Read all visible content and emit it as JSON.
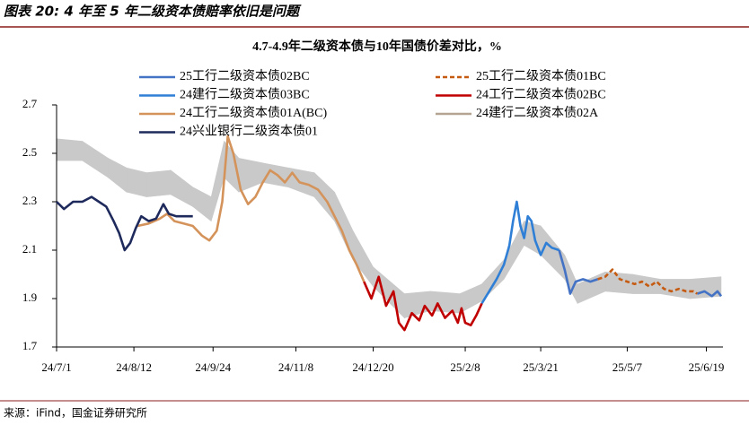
{
  "header": {
    "title": "图表 20: 4 年至 5 年二级资本债赔率依旧是问题"
  },
  "chart_data": {
    "type": "line",
    "title": "4.7-4.9年二级资本债与10年国债价差对比，%",
    "xlim": [
      "2024-07-01",
      "2025-06-28"
    ],
    "xticks": [
      {
        "value": "2024-07-01",
        "label": "24/7/1"
      },
      {
        "value": "2024-08-12",
        "label": "24/8/12"
      },
      {
        "value": "2024-09-24",
        "label": "24/9/24"
      },
      {
        "value": "2024-11-08",
        "label": "24/11/8"
      },
      {
        "value": "2024-12-20",
        "label": "24/12/20"
      },
      {
        "value": "2025-02-08",
        "label": "25/2/8"
      },
      {
        "value": "2025-03-21",
        "label": "25/3/21"
      },
      {
        "value": "2025-05-07",
        "label": "25/5/7"
      },
      {
        "value": "2025-06-19",
        "label": "25/6/19"
      }
    ],
    "ylim": [
      1.7,
      2.7
    ],
    "yticks": [
      1.7,
      1.9,
      2.1,
      2.3,
      2.5,
      2.7
    ],
    "grid": false,
    "band": {
      "color": "#c9c9c9",
      "x": [
        "2024-07-01",
        "2024-07-15",
        "2024-07-29",
        "2024-08-08",
        "2024-08-19",
        "2024-09-01",
        "2024-09-13",
        "2024-09-23",
        "2024-09-30",
        "2024-10-08",
        "2024-10-21",
        "2024-11-04",
        "2024-11-18",
        "2024-11-29",
        "2024-12-09",
        "2024-12-20",
        "2025-01-06",
        "2025-01-20",
        "2025-02-05",
        "2025-02-17",
        "2025-03-01",
        "2025-03-12",
        "2025-03-21",
        "2025-04-03",
        "2025-04-10",
        "2025-04-25",
        "2025-05-10",
        "2025-05-25",
        "2025-06-10",
        "2025-06-27"
      ],
      "low": [
        2.47,
        2.47,
        2.4,
        2.34,
        2.32,
        2.33,
        2.28,
        2.22,
        2.4,
        2.34,
        2.38,
        2.36,
        2.32,
        2.22,
        2.06,
        1.95,
        1.82,
        1.85,
        1.84,
        1.89,
        1.98,
        2.12,
        2.08,
        1.98,
        1.88,
        1.93,
        1.92,
        1.92,
        1.9,
        1.91
      ],
      "high": [
        2.56,
        2.55,
        2.48,
        2.44,
        2.42,
        2.43,
        2.36,
        2.32,
        2.55,
        2.48,
        2.46,
        2.44,
        2.42,
        2.34,
        2.18,
        2.03,
        1.92,
        1.93,
        1.92,
        1.96,
        2.06,
        2.22,
        2.2,
        2.08,
        1.96,
        2.01,
        2.0,
        1.98,
        1.98,
        1.99
      ]
    },
    "series": [
      {
        "name": "25工行二级资本债02BC",
        "color": "#4472c4",
        "x": [
          "2025-03-31",
          "2025-04-03",
          "2025-04-06",
          "2025-04-09",
          "2025-04-13",
          "2025-04-17",
          "2025-04-21",
          "2025-05-01",
          "2025-06-14",
          "2025-06-18",
          "2025-06-22",
          "2025-06-25",
          "2025-06-27"
        ],
        "values": [
          2.1,
          2.02,
          1.92,
          1.97,
          1.98,
          1.97,
          1.98,
          null,
          1.92,
          1.93,
          1.91,
          1.93,
          1.91
        ]
      },
      {
        "name": "25工行二级资本债01BC",
        "color": "#c55a11",
        "dash": true,
        "x": [
          "2025-04-21",
          "2025-04-25",
          "2025-04-29",
          "2025-05-03",
          "2025-05-07",
          "2025-05-11",
          "2025-05-15",
          "2025-05-19",
          "2025-05-23",
          "2025-05-27",
          "2025-05-31",
          "2025-06-04",
          "2025-06-08",
          "2025-06-12",
          "2025-06-14"
        ],
        "values": [
          1.98,
          1.99,
          2.02,
          1.98,
          1.97,
          1.96,
          1.97,
          1.95,
          1.97,
          1.94,
          1.93,
          1.94,
          1.93,
          1.93,
          1.92
        ]
      },
      {
        "name": "24建行二级资本债03BC",
        "color": "#2f7fd6",
        "x": [
          "2025-02-17",
          "2025-02-21",
          "2025-02-25",
          "2025-03-01",
          "2025-03-04",
          "2025-03-06",
          "2025-03-08",
          "2025-03-10",
          "2025-03-12",
          "2025-03-14",
          "2025-03-16",
          "2025-03-18",
          "2025-03-21",
          "2025-03-24",
          "2025-03-27",
          "2025-03-31"
        ],
        "values": [
          1.88,
          1.93,
          1.98,
          2.04,
          2.12,
          2.22,
          2.3,
          2.2,
          2.15,
          2.24,
          2.22,
          2.14,
          2.08,
          2.13,
          2.11,
          2.1
        ]
      },
      {
        "name": "24工行二级资本债02BC",
        "color": "#c00000",
        "x": [
          "2024-12-15",
          "2024-12-19",
          "2024-12-23",
          "2024-12-27",
          "2024-12-31",
          "2025-01-03",
          "2025-01-06",
          "2025-01-10",
          "2025-01-14",
          "2025-01-17",
          "2025-01-21",
          "2025-01-24",
          "2025-01-28",
          "2025-02-01",
          "2025-02-04",
          "2025-02-06",
          "2025-02-08",
          "2025-02-11",
          "2025-02-14",
          "2025-02-17"
        ],
        "values": [
          1.97,
          1.9,
          1.99,
          1.87,
          1.93,
          1.8,
          1.77,
          1.84,
          1.81,
          1.87,
          1.83,
          1.88,
          1.82,
          1.85,
          1.8,
          1.86,
          1.8,
          1.79,
          1.83,
          1.88
        ]
      },
      {
        "name": "24工行二级资本债01A(BC)",
        "color": "#d4935a",
        "x": [
          "2024-08-14",
          "2024-08-20",
          "2024-08-26",
          "2024-08-30",
          "2024-09-03",
          "2024-09-08",
          "2024-09-13",
          "2024-09-18",
          "2024-09-22",
          "2024-09-26",
          "2024-09-29",
          "2024-10-02",
          "2024-10-05",
          "2024-10-09",
          "2024-10-13",
          "2024-10-17",
          "2024-10-21",
          "2024-10-25",
          "2024-10-29",
          "2024-11-02",
          "2024-11-06",
          "2024-11-10",
          "2024-11-15",
          "2024-11-20",
          "2024-11-25",
          "2024-11-29",
          "2024-12-03",
          "2024-12-07",
          "2024-12-11",
          "2024-12-15"
        ],
        "values": [
          2.2,
          2.21,
          2.23,
          2.25,
          2.22,
          2.21,
          2.2,
          2.16,
          2.14,
          2.18,
          2.3,
          2.57,
          2.5,
          2.35,
          2.29,
          2.32,
          2.38,
          2.43,
          2.41,
          2.38,
          2.42,
          2.38,
          2.37,
          2.35,
          2.3,
          2.24,
          2.18,
          2.1,
          2.04,
          1.97
        ]
      },
      {
        "name": "24建行二级资本债02A",
        "color": "#b5a491",
        "x": [],
        "values": []
      },
      {
        "name": "24兴业银行二级资本债01",
        "color": "#1f2a5c",
        "x": [
          "2024-07-01",
          "2024-07-05",
          "2024-07-10",
          "2024-07-15",
          "2024-07-20",
          "2024-07-24",
          "2024-07-28",
          "2024-08-01",
          "2024-08-04",
          "2024-08-07",
          "2024-08-10",
          "2024-08-13",
          "2024-08-16",
          "2024-08-20",
          "2024-08-24",
          "2024-08-28",
          "2024-08-31",
          "2024-09-04",
          "2024-09-13"
        ],
        "values": [
          2.3,
          2.27,
          2.3,
          2.3,
          2.32,
          2.3,
          2.28,
          2.22,
          2.17,
          2.1,
          2.13,
          2.19,
          2.24,
          2.22,
          2.23,
          2.29,
          2.25,
          2.24,
          2.24
        ]
      }
    ]
  },
  "footer": {
    "source": "来源：iFind，国金证券研究所"
  }
}
